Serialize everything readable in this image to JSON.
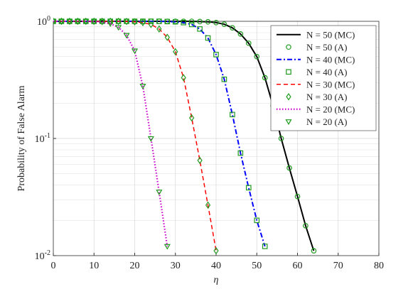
{
  "chart_data": {
    "type": "line",
    "xlabel": "η",
    "ylabel": "Probability of False Alarm",
    "log_y": true,
    "grid": true,
    "minor_grid": true,
    "legend": "upper right",
    "xlim": [
      0,
      80
    ],
    "xticks": [
      0,
      10,
      20,
      30,
      40,
      50,
      60,
      70,
      80
    ],
    "ylim": [
      0.01,
      1
    ],
    "yticks": [
      {
        "value": 0.01,
        "label": "10^-2"
      },
      {
        "value": 0.1,
        "label": "10^-1"
      },
      {
        "value": 1,
        "label": "10^0"
      }
    ],
    "x": [
      0,
      2,
      4,
      6,
      8,
      10,
      12,
      14,
      16,
      18,
      20,
      22,
      24,
      26,
      28,
      30,
      32,
      34,
      36,
      38,
      40,
      42,
      44,
      46,
      48,
      50,
      52,
      54,
      56,
      58,
      60,
      62,
      64,
      66,
      68,
      70,
      72,
      74,
      76,
      78,
      80
    ],
    "series": [
      {
        "name": "N = 50 (MC)",
        "color": "#000000",
        "style": "solid",
        "values": [
          1,
          1,
          1,
          1,
          1,
          1,
          1,
          1,
          1,
          1,
          1,
          1,
          1,
          1,
          1,
          1,
          1,
          1,
          0.995,
          0.99,
          0.975,
          0.945,
          0.88,
          0.78,
          0.65,
          0.5,
          0.33,
          0.19,
          0.1,
          0.056,
          0.032,
          0.018,
          0.011,
          null,
          null,
          null,
          null,
          null,
          null,
          null,
          null
        ]
      },
      {
        "name": "N = 50 (A)",
        "color": "#1f9a1f",
        "marker": "circle",
        "values": [
          1,
          1,
          1,
          1,
          1,
          1,
          1,
          1,
          1,
          1,
          1,
          1,
          1,
          1,
          1,
          1,
          1,
          1,
          0.995,
          0.99,
          0.975,
          0.945,
          0.88,
          0.78,
          0.65,
          0.5,
          0.33,
          0.19,
          0.1,
          0.056,
          0.032,
          0.018,
          0.011,
          null,
          null,
          null,
          null,
          null,
          null,
          null,
          null
        ]
      },
      {
        "name": "N = 40 (MC)",
        "color": "#0000ff",
        "style": "dashdot",
        "values": [
          1,
          1,
          1,
          1,
          1,
          1,
          1,
          1,
          1,
          1,
          1,
          1,
          1,
          1,
          0.995,
          0.99,
          0.975,
          0.94,
          0.86,
          0.72,
          0.52,
          0.32,
          0.16,
          0.075,
          0.038,
          0.02,
          0.012,
          null,
          null,
          null,
          null,
          null,
          null,
          null,
          null,
          null,
          null,
          null,
          null,
          null,
          null
        ]
      },
      {
        "name": "N = 40 (A)",
        "color": "#1f9a1f",
        "marker": "square",
        "values": [
          1,
          1,
          1,
          1,
          1,
          1,
          1,
          1,
          1,
          1,
          1,
          1,
          1,
          1,
          0.995,
          0.99,
          0.975,
          0.94,
          0.86,
          0.72,
          0.52,
          0.32,
          0.16,
          0.075,
          0.038,
          0.02,
          0.012,
          null,
          null,
          null,
          null,
          null,
          null,
          null,
          null,
          null,
          null,
          null,
          null,
          null,
          null
        ]
      },
      {
        "name": "N = 30 (MC)",
        "color": "#ff0000",
        "style": "dashed",
        "values": [
          1,
          1,
          1,
          1,
          1,
          1,
          1,
          1,
          0.999,
          0.997,
          0.99,
          0.975,
          0.94,
          0.86,
          0.73,
          0.55,
          0.33,
          0.15,
          0.065,
          0.027,
          0.011,
          null,
          null,
          null,
          null,
          null,
          null,
          null,
          null,
          null,
          null,
          null,
          null,
          null,
          null,
          null,
          null,
          null,
          null,
          null,
          null
        ]
      },
      {
        "name": "N = 30 (A)",
        "color": "#1f9a1f",
        "marker": "diamond",
        "values": [
          1,
          1,
          1,
          1,
          1,
          1,
          1,
          1,
          0.999,
          0.997,
          0.99,
          0.975,
          0.94,
          0.86,
          0.73,
          0.55,
          0.33,
          0.15,
          0.065,
          0.027,
          0.011,
          null,
          null,
          null,
          null,
          null,
          null,
          null,
          null,
          null,
          null,
          null,
          null,
          null,
          null,
          null,
          null,
          null,
          null,
          null,
          null
        ]
      },
      {
        "name": "N = 20 (MC)",
        "color": "#cc00cc",
        "style": "dotted",
        "values": [
          1,
          1,
          1,
          1,
          1,
          0.993,
          0.985,
          0.955,
          0.89,
          0.76,
          0.56,
          0.28,
          0.1,
          0.035,
          0.012,
          null,
          null,
          null,
          null,
          null,
          null,
          null,
          null,
          null,
          null,
          null,
          null,
          null,
          null,
          null,
          null,
          null,
          null,
          null,
          null,
          null,
          null,
          null,
          null,
          null,
          null
        ]
      },
      {
        "name": "N = 20 (A)",
        "color": "#1f9a1f",
        "marker": "triangle-down",
        "values": [
          1,
          1,
          1,
          1,
          1,
          0.993,
          0.985,
          0.955,
          0.89,
          0.76,
          0.56,
          0.28,
          0.1,
          0.035,
          0.012,
          null,
          null,
          null,
          null,
          null,
          null,
          null,
          null,
          null,
          null,
          null,
          null,
          null,
          null,
          null,
          null,
          null,
          null,
          null,
          null,
          null,
          null,
          null,
          null,
          null,
          null
        ]
      }
    ]
  }
}
